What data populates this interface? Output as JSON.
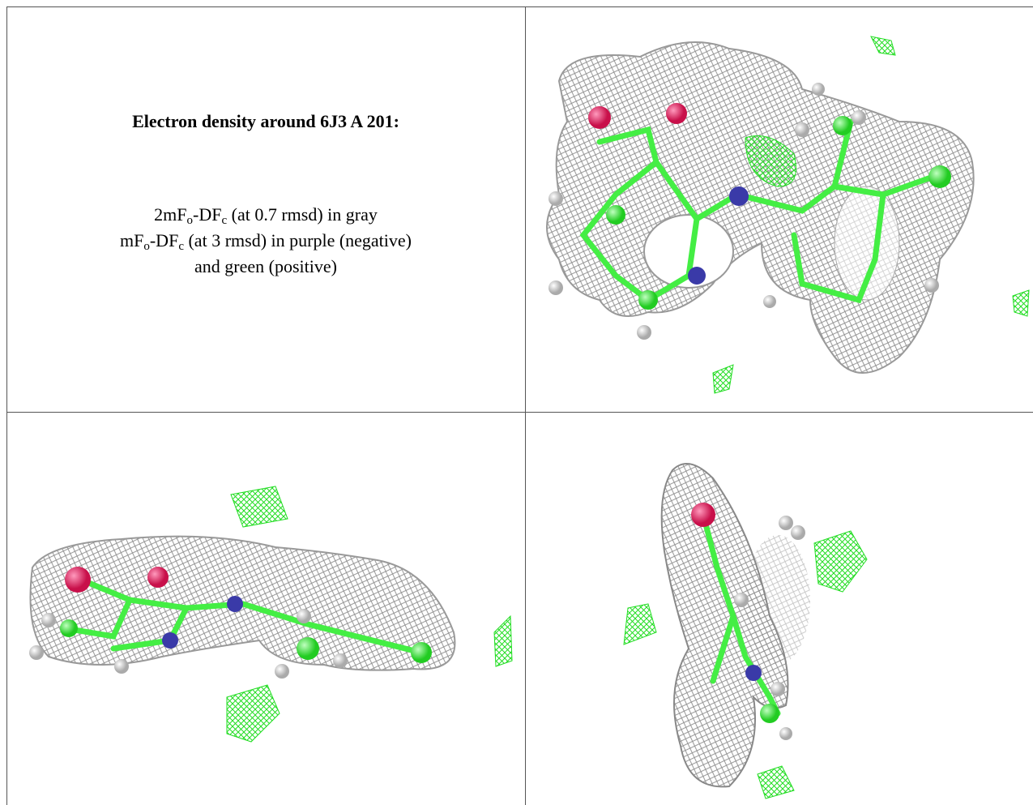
{
  "caption": {
    "title": "Electron density around 6J3 A 201:",
    "lines": [
      [
        "2mF",
        "o",
        "-DF",
        "c",
        " (at 0.7 rmsd) in gray"
      ],
      [
        "mF",
        "o",
        "-DF",
        "c",
        " (at 3 rmsd) in purple (negative)"
      ],
      [
        "and green (positive)"
      ]
    ]
  }
}
